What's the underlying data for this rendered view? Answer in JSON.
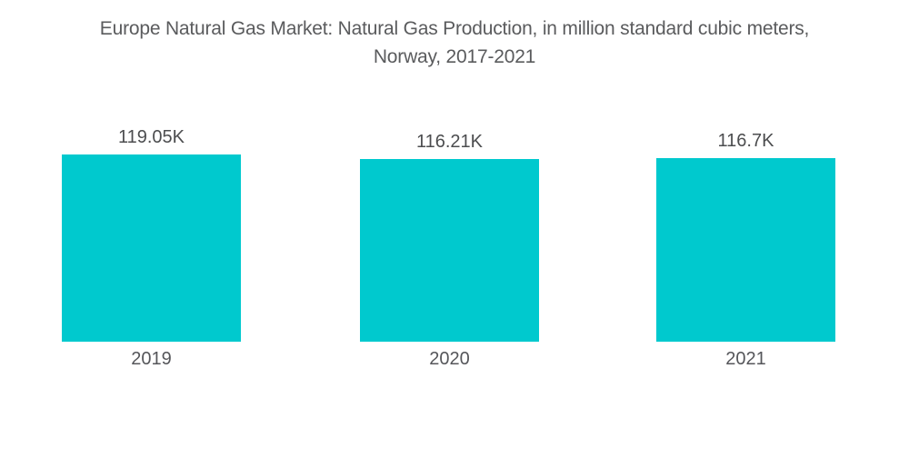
{
  "title_lines": [
    "Europe Natural Gas Market: Natural Gas Production, in million standard cubic meters,",
    "Norway, 2017-2021"
  ],
  "chart_data": {
    "type": "bar",
    "title": "Europe Natural Gas Market: Natural Gas Production, in million standard cubic meters, Norway, 2017-2021",
    "categories": [
      "2019",
      "2020",
      "2021"
    ],
    "values": [
      119050,
      116210,
      116700
    ],
    "value_labels": [
      "119.05K",
      "116.21K",
      "116.7K"
    ],
    "unit": "million standard cubic meters",
    "xlabel": "",
    "ylabel": "",
    "ylim": [
      0,
      119050
    ],
    "grid": false,
    "legend": false,
    "bar_color": "#00C9CE"
  },
  "colors": {
    "background": "#FFFFFF",
    "bar": "#00C9CE",
    "title_text": "#5A5B5D",
    "value_label_text": "#4C4D4F",
    "category_label_text": "#55565A"
  }
}
